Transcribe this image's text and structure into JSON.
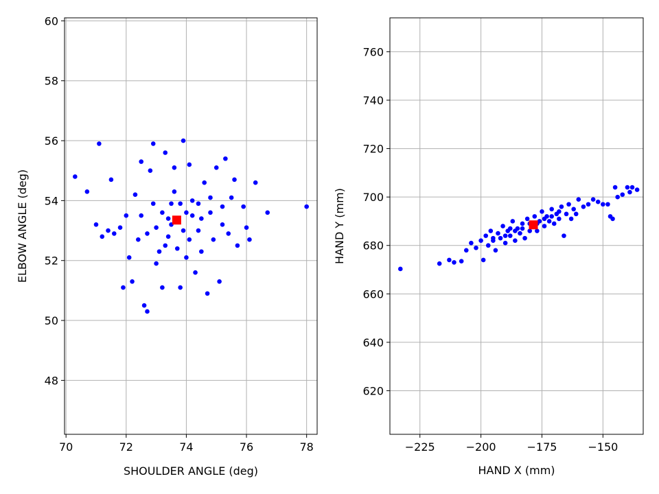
{
  "colors": {
    "points": "#0000ff",
    "mean": "#ff0000",
    "grid": "#b0b0b0",
    "axes": "#000000"
  },
  "chart_data": [
    {
      "type": "scatter",
      "xlabel": "SHOULDER ANGLE (deg)",
      "ylabel": "ELBOW ANGLE (deg)",
      "xlim": [
        69.95,
        78.35
      ],
      "ylim": [
        46.2,
        60.1
      ],
      "xticks": [
        70,
        72,
        74,
        76,
        78
      ],
      "yticks": [
        48,
        50,
        52,
        54,
        56,
        58,
        60
      ],
      "grid": true,
      "legend": "none",
      "series": [
        {
          "marker": "circle",
          "color": "#0000ff",
          "points": [
            [
              70.3,
              54.8
            ],
            [
              70.7,
              54.3
            ],
            [
              71.0,
              53.2
            ],
            [
              71.1,
              55.9
            ],
            [
              71.2,
              52.8
            ],
            [
              71.4,
              53.0
            ],
            [
              71.5,
              54.7
            ],
            [
              71.6,
              52.9
            ],
            [
              71.8,
              53.1
            ],
            [
              71.9,
              51.1
            ],
            [
              72.0,
              53.5
            ],
            [
              72.1,
              52.1
            ],
            [
              72.2,
              51.3
            ],
            [
              72.3,
              54.2
            ],
            [
              72.4,
              52.7
            ],
            [
              72.5,
              55.3
            ],
            [
              72.6,
              50.5
            ],
            [
              72.7,
              50.3
            ],
            [
              72.8,
              55.0
            ],
            [
              72.9,
              55.9
            ],
            [
              73.0,
              51.9
            ],
            [
              73.1,
              52.3
            ],
            [
              73.2,
              51.1
            ],
            [
              73.3,
              55.6
            ],
            [
              73.4,
              52.8
            ],
            [
              73.5,
              53.9
            ],
            [
              73.6,
              55.1
            ],
            [
              73.7,
              52.4
            ],
            [
              73.8,
              51.1
            ],
            [
              73.9,
              56.0
            ],
            [
              74.0,
              53.6
            ],
            [
              74.0,
              52.1
            ],
            [
              74.1,
              55.2
            ],
            [
              74.2,
              54.0
            ],
            [
              74.3,
              51.6
            ],
            [
              74.4,
              53.0
            ],
            [
              74.5,
              52.3
            ],
            [
              74.6,
              54.6
            ],
            [
              74.7,
              50.9
            ],
            [
              74.8,
              53.6
            ],
            [
              74.9,
              52.7
            ],
            [
              75.0,
              55.1
            ],
            [
              75.1,
              51.3
            ],
            [
              75.2,
              53.2
            ],
            [
              75.3,
              55.4
            ],
            [
              75.4,
              52.9
            ],
            [
              75.5,
              54.1
            ],
            [
              75.6,
              54.7
            ],
            [
              75.7,
              52.5
            ],
            [
              75.9,
              53.8
            ],
            [
              76.0,
              53.1
            ],
            [
              76.1,
              52.7
            ],
            [
              76.3,
              54.6
            ],
            [
              76.7,
              53.6
            ],
            [
              78.0,
              53.8
            ],
            [
              73.2,
              53.6
            ],
            [
              73.5,
              53.2
            ],
            [
              73.9,
              53.0
            ],
            [
              74.2,
              53.5
            ],
            [
              73.8,
              53.9
            ],
            [
              73.4,
              53.4
            ],
            [
              72.9,
              53.9
            ],
            [
              74.5,
              53.4
            ],
            [
              74.1,
              52.7
            ],
            [
              73.0,
              53.1
            ],
            [
              74.8,
              54.1
            ],
            [
              72.5,
              53.5
            ],
            [
              75.2,
              53.8
            ],
            [
              73.6,
              54.3
            ],
            [
              73.3,
              52.5
            ],
            [
              74.4,
              53.9
            ],
            [
              72.7,
              52.9
            ]
          ]
        },
        {
          "name": "",
          "marker": "square",
          "color": "#ff0000",
          "points": [
            [
              73.68,
              53.35
            ]
          ]
        }
      ]
    },
    {
      "type": "scatter",
      "xlabel": "HAND X (mm)",
      "ylabel": "HAND Y (mm)",
      "xlim": [
        -237.3,
        -133.5
      ],
      "ylim": [
        602.0,
        774.0
      ],
      "xticks": [
        -225,
        -200,
        -175,
        -150
      ],
      "yticks": [
        620,
        640,
        660,
        680,
        700,
        720,
        740,
        760
      ],
      "grid": true,
      "legend": "none",
      "series": [
        {
          "marker": "circle",
          "color": "#0000ff",
          "points": [
            [
              -233.0,
              670.3
            ],
            [
              -217.0,
              672.5
            ],
            [
              -213.0,
              674.0
            ],
            [
              -211.0,
              673.0
            ],
            [
              -208.0,
              673.5
            ],
            [
              -206.0,
              678.0
            ],
            [
              -204.0,
              681.0
            ],
            [
              -202.0,
              679.0
            ],
            [
              -200.0,
              682.0
            ],
            [
              -199.0,
              674.0
            ],
            [
              -198.0,
              684.0
            ],
            [
              -197.0,
              680.0
            ],
            [
              -196.0,
              686.0
            ],
            [
              -195.0,
              682.0
            ],
            [
              -194.0,
              678.0
            ],
            [
              -193.0,
              685.0
            ],
            [
              -192.0,
              683.0
            ],
            [
              -191.0,
              688.0
            ],
            [
              -190.0,
              681.0
            ],
            [
              -189.0,
              686.0
            ],
            [
              -188.0,
              684.0
            ],
            [
              -187.0,
              690.0
            ],
            [
              -186.0,
              682.0
            ],
            [
              -185.0,
              687.0
            ],
            [
              -184.0,
              685.0
            ],
            [
              -183.0,
              689.0
            ],
            [
              -182.0,
              683.0
            ],
            [
              -181.0,
              691.0
            ],
            [
              -180.0,
              686.0
            ],
            [
              -179.0,
              688.0
            ],
            [
              -178.0,
              692.0
            ],
            [
              -177.0,
              686.0
            ],
            [
              -176.0,
              690.0
            ],
            [
              -175.0,
              694.0
            ],
            [
              -174.0,
              688.0
            ],
            [
              -173.0,
              692.0
            ],
            [
              -172.0,
              690.0
            ],
            [
              -171.0,
              695.0
            ],
            [
              -170.0,
              689.0
            ],
            [
              -169.0,
              693.0
            ],
            [
              -168.0,
              691.0
            ],
            [
              -167.0,
              696.0
            ],
            [
              -166.0,
              684.0
            ],
            [
              -165.0,
              693.0
            ],
            [
              -164.0,
              697.0
            ],
            [
              -163.0,
              691.0
            ],
            [
              -162.0,
              695.0
            ],
            [
              -161.0,
              693.0
            ],
            [
              -160.0,
              699.0
            ],
            [
              -158.0,
              696.0
            ],
            [
              -156.0,
              697.0
            ],
            [
              -154.0,
              699.0
            ],
            [
              -152.0,
              698.0
            ],
            [
              -150.0,
              697.0
            ],
            [
              -148.0,
              697.0
            ],
            [
              -147.0,
              692.0
            ],
            [
              -146.0,
              691.0
            ],
            [
              -145.0,
              704.0
            ],
            [
              -144.0,
              700.0
            ],
            [
              -142.0,
              701.0
            ],
            [
              -140.0,
              704.0
            ],
            [
              -139.0,
              702.0
            ],
            [
              -138.0,
              704.0
            ],
            [
              -136.0,
              703.0
            ],
            [
              -186.0,
              686.0
            ],
            [
              -180.0,
              689.0
            ],
            [
              -174.0,
              691.0
            ],
            [
              -190.0,
              684.0
            ],
            [
              -183.0,
              687.0
            ],
            [
              -177.0,
              689.0
            ],
            [
              -171.0,
              692.0
            ],
            [
              -195.0,
              683.0
            ],
            [
              -168.0,
              694.0
            ],
            [
              -188.0,
              687.0
            ]
          ]
        },
        {
          "name": "",
          "marker": "square",
          "color": "#ff0000",
          "points": [
            [
              -178.5,
              688.5
            ]
          ]
        }
      ]
    }
  ]
}
